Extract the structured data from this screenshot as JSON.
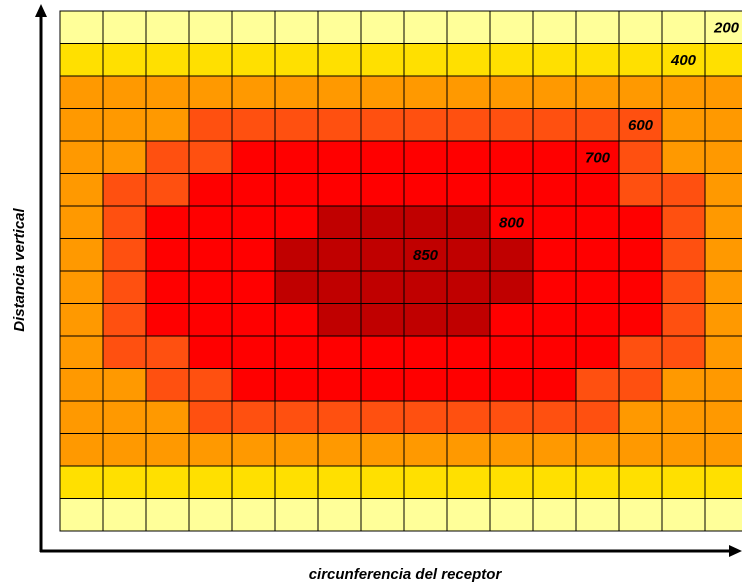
{
  "chart_data": {
    "type": "heatmap",
    "title": "",
    "xlabel": "circunferencia del receptor",
    "ylabel": "Distancia vertical",
    "grid": true,
    "legend": "none",
    "rows": 16,
    "cols": 16,
    "colors": {
      "0": "#ffff99",
      "1": "#ffe000",
      "2": "#ff9900",
      "3": "#ff5010",
      "4": "#ff0000",
      "5": "#c00000"
    },
    "level_values": [
      200,
      400,
      600,
      700,
      800,
      850
    ],
    "matrix": [
      [
        0,
        0,
        0,
        0,
        0,
        0,
        0,
        0,
        0,
        0,
        0,
        0,
        0,
        0,
        0,
        0
      ],
      [
        1,
        1,
        1,
        1,
        1,
        1,
        1,
        1,
        1,
        1,
        1,
        1,
        1,
        1,
        1,
        1
      ],
      [
        2,
        2,
        2,
        2,
        2,
        2,
        2,
        2,
        2,
        2,
        2,
        2,
        2,
        2,
        2,
        2
      ],
      [
        2,
        2,
        2,
        3,
        3,
        3,
        3,
        3,
        3,
        3,
        3,
        3,
        3,
        3,
        2,
        2
      ],
      [
        2,
        2,
        3,
        3,
        4,
        4,
        4,
        4,
        4,
        4,
        4,
        4,
        4,
        3,
        2,
        2
      ],
      [
        2,
        3,
        3,
        4,
        4,
        4,
        4,
        4,
        4,
        4,
        4,
        4,
        4,
        3,
        3,
        2
      ],
      [
        2,
        3,
        4,
        4,
        4,
        4,
        5,
        5,
        5,
        5,
        4,
        4,
        4,
        4,
        3,
        2
      ],
      [
        2,
        3,
        4,
        4,
        4,
        5,
        5,
        5,
        5,
        5,
        5,
        4,
        4,
        4,
        3,
        2
      ],
      [
        2,
        3,
        4,
        4,
        4,
        5,
        5,
        5,
        5,
        5,
        5,
        4,
        4,
        4,
        3,
        2
      ],
      [
        2,
        3,
        4,
        4,
        4,
        4,
        5,
        5,
        5,
        5,
        4,
        4,
        4,
        4,
        3,
        2
      ],
      [
        2,
        3,
        3,
        4,
        4,
        4,
        4,
        4,
        4,
        4,
        4,
        4,
        4,
        3,
        3,
        2
      ],
      [
        2,
        2,
        3,
        3,
        4,
        4,
        4,
        4,
        4,
        4,
        4,
        4,
        3,
        3,
        2,
        2
      ],
      [
        2,
        2,
        2,
        3,
        3,
        3,
        3,
        3,
        3,
        3,
        3,
        3,
        3,
        2,
        2,
        2
      ],
      [
        2,
        2,
        2,
        2,
        2,
        2,
        2,
        2,
        2,
        2,
        2,
        2,
        2,
        2,
        2,
        2
      ],
      [
        1,
        1,
        1,
        1,
        1,
        1,
        1,
        1,
        1,
        1,
        1,
        1,
        1,
        1,
        1,
        1
      ],
      [
        0,
        0,
        0,
        0,
        0,
        0,
        0,
        0,
        0,
        0,
        0,
        0,
        0,
        0,
        0,
        0
      ]
    ],
    "labels": [
      {
        "text": "200",
        "row": 0,
        "col": 15
      },
      {
        "text": "400",
        "row": 1,
        "col": 14
      },
      {
        "text": "600",
        "row": 3,
        "col": 13
      },
      {
        "text": "700",
        "row": 4,
        "col": 12
      },
      {
        "text": "800",
        "row": 6,
        "col": 10
      },
      {
        "text": "850",
        "row": 7,
        "col": 8
      }
    ]
  }
}
